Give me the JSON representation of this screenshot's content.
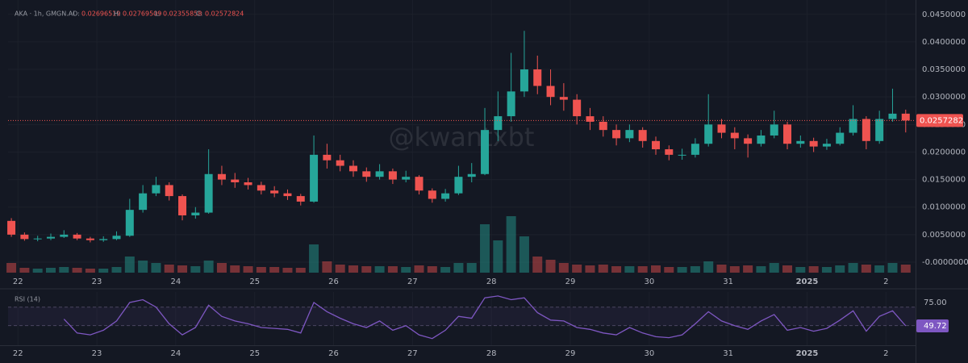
{
  "chart_data": {
    "type": "candlestick",
    "title": "AKA · 1h, GMGN.AI",
    "ohlc_labels": [
      "O:",
      "H:",
      "L:",
      "C:"
    ],
    "watermark": "@kwantxbt",
    "up_color": "#26a69a",
    "down_color": "#ef5350",
    "grid": true,
    "x": [
      -2,
      2,
      6,
      10,
      14,
      18,
      22,
      26,
      30,
      34,
      38,
      42,
      46,
      50,
      54,
      58,
      62,
      66,
      70,
      74,
      78,
      82,
      86,
      90,
      94,
      98,
      102,
      106,
      110,
      114,
      118,
      122,
      126,
      130,
      134,
      138,
      142,
      146,
      150,
      154,
      158,
      162,
      166,
      170,
      174,
      178,
      182,
      186,
      190,
      194,
      198,
      202,
      206,
      210,
      214,
      218,
      222,
      226,
      230,
      234,
      238,
      242,
      246,
      250,
      254,
      258,
      262,
      266,
      270
    ],
    "open": [
      0.0075,
      0.005,
      0.0042,
      0.0043,
      0.0046,
      0.005,
      0.0043,
      0.004,
      0.0042,
      0.0048,
      0.0095,
      0.0125,
      0.014,
      0.012,
      0.0085,
      0.009,
      0.016,
      0.015,
      0.0145,
      0.014,
      0.013,
      0.0125,
      0.012,
      0.011,
      0.0195,
      0.0185,
      0.0175,
      0.0165,
      0.0155,
      0.0165,
      0.015,
      0.0155,
      0.013,
      0.0115,
      0.0125,
      0.0155,
      0.016,
      0.024,
      0.0265,
      0.031,
      0.035,
      0.032,
      0.03,
      0.0295,
      0.0265,
      0.0255,
      0.024,
      0.0225,
      0.024,
      0.022,
      0.0205,
      0.0195,
      0.0195,
      0.0215,
      0.025,
      0.0235,
      0.0225,
      0.0215,
      0.023,
      0.025,
      0.0215,
      0.022,
      0.021,
      0.0215,
      0.0235,
      0.026,
      0.022,
      0.026,
      0.02696519
    ],
    "high": [
      0.008,
      0.0054,
      0.0048,
      0.0052,
      0.0058,
      0.0053,
      0.0046,
      0.0047,
      0.0056,
      0.0115,
      0.014,
      0.0155,
      0.0145,
      0.0123,
      0.01,
      0.0205,
      0.0175,
      0.0162,
      0.0153,
      0.0146,
      0.0138,
      0.0132,
      0.0124,
      0.023,
      0.0215,
      0.0195,
      0.0185,
      0.0172,
      0.0178,
      0.017,
      0.0166,
      0.0158,
      0.0134,
      0.0133,
      0.0175,
      0.018,
      0.028,
      0.031,
      0.038,
      0.042,
      0.0375,
      0.035,
      0.0325,
      0.0305,
      0.028,
      0.0265,
      0.025,
      0.025,
      0.0245,
      0.0228,
      0.0212,
      0.0206,
      0.0225,
      0.0305,
      0.026,
      0.0245,
      0.0232,
      0.024,
      0.0275,
      0.0255,
      0.023,
      0.0226,
      0.0224,
      0.0245,
      0.0285,
      0.0265,
      0.0275,
      0.0315,
      0.02769509
    ],
    "low": [
      0.0046,
      0.0039,
      0.0038,
      0.004,
      0.0044,
      0.004,
      0.0036,
      0.0037,
      0.004,
      0.0046,
      0.009,
      0.012,
      0.0112,
      0.0076,
      0.0079,
      0.0088,
      0.014,
      0.0135,
      0.0132,
      0.0123,
      0.0118,
      0.0113,
      0.0103,
      0.0108,
      0.017,
      0.0165,
      0.0155,
      0.0146,
      0.015,
      0.0142,
      0.0145,
      0.0123,
      0.0108,
      0.011,
      0.0122,
      0.0145,
      0.0158,
      0.022,
      0.0255,
      0.03,
      0.0305,
      0.0285,
      0.0275,
      0.025,
      0.024,
      0.0228,
      0.0212,
      0.0218,
      0.0208,
      0.0195,
      0.0185,
      0.0186,
      0.019,
      0.021,
      0.0225,
      0.0205,
      0.019,
      0.021,
      0.0225,
      0.0205,
      0.0208,
      0.02,
      0.0204,
      0.0212,
      0.023,
      0.0205,
      0.0215,
      0.0255,
      0.02355858
    ],
    "close": [
      0.005,
      0.0042,
      0.0043,
      0.0046,
      0.005,
      0.0043,
      0.004,
      0.0042,
      0.0048,
      0.0095,
      0.0125,
      0.014,
      0.012,
      0.0085,
      0.009,
      0.016,
      0.015,
      0.0145,
      0.014,
      0.013,
      0.0125,
      0.012,
      0.011,
      0.0195,
      0.0185,
      0.0175,
      0.0165,
      0.0155,
      0.0165,
      0.015,
      0.0155,
      0.013,
      0.0115,
      0.0125,
      0.0155,
      0.016,
      0.024,
      0.0265,
      0.031,
      0.035,
      0.032,
      0.03,
      0.0295,
      0.0265,
      0.0255,
      0.024,
      0.0225,
      0.024,
      0.022,
      0.0205,
      0.0195,
      0.0195,
      0.0215,
      0.025,
      0.0235,
      0.0225,
      0.0215,
      0.023,
      0.025,
      0.0215,
      0.022,
      0.021,
      0.0215,
      0.0235,
      0.026,
      0.022,
      0.026,
      0.02696519,
      0.02572824
    ],
    "volume": [
      12,
      6,
      5,
      6,
      7,
      6,
      5,
      5,
      7,
      20,
      15,
      12,
      10,
      9,
      8,
      15,
      12,
      9,
      8,
      7,
      7,
      6,
      6,
      35,
      14,
      10,
      9,
      8,
      8,
      8,
      7,
      9,
      8,
      7,
      12,
      12,
      60,
      40,
      70,
      45,
      20,
      16,
      12,
      10,
      9,
      10,
      8,
      8,
      8,
      9,
      7,
      7,
      8,
      14,
      10,
      8,
      9,
      8,
      12,
      9,
      7,
      8,
      7,
      9,
      12,
      10,
      9,
      12,
      10
    ],
    "xlim": [
      -3,
      273
    ],
    "xticks": [
      {
        "value": 0,
        "label": "22"
      },
      {
        "value": 24,
        "label": "23"
      },
      {
        "value": 48,
        "label": "24"
      },
      {
        "value": 72,
        "label": "25"
      },
      {
        "value": 96,
        "label": "26"
      },
      {
        "value": 120,
        "label": "27"
      },
      {
        "value": 144,
        "label": "28"
      },
      {
        "value": 168,
        "label": "29"
      },
      {
        "value": 192,
        "label": "30"
      },
      {
        "value": 216,
        "label": "31"
      },
      {
        "value": 240,
        "label": "2025"
      },
      {
        "value": 264,
        "label": "2"
      }
    ],
    "ylim": [
      -0.0019,
      0.0476
    ],
    "yticks": [
      {
        "value": 0.045,
        "label": "0.0450000"
      },
      {
        "value": 0.04,
        "label": "0.0400000"
      },
      {
        "value": 0.035,
        "label": "0.0350000"
      },
      {
        "value": 0.03,
        "label": "0.0300000"
      },
      {
        "value": 0.025,
        "label": "0.0250000"
      },
      {
        "value": 0.02,
        "label": "0.0200000"
      },
      {
        "value": 0.015,
        "label": "0.0150000"
      },
      {
        "value": 0.01,
        "label": "0.0100000"
      },
      {
        "value": 0.005,
        "label": "0.0050000"
      },
      {
        "value": 0,
        "label": "-0.0000000"
      }
    ],
    "price_line": 0.0257282,
    "indicator": {
      "name": "RSI (14)",
      "color": "#7e57c2",
      "values": [
        null,
        null,
        null,
        null,
        57,
        42,
        40,
        45,
        55,
        75,
        78,
        70,
        52,
        40,
        48,
        72,
        60,
        55,
        52,
        48,
        47,
        46,
        42,
        75,
        65,
        58,
        52,
        48,
        55,
        45,
        50,
        40,
        36,
        45,
        60,
        58,
        80,
        82,
        78,
        80,
        64,
        56,
        55,
        48,
        46,
        42,
        40,
        48,
        42,
        38,
        37,
        40,
        52,
        65,
        55,
        50,
        46,
        55,
        62,
        45,
        48,
        44,
        47,
        56,
        66,
        44,
        60,
        66,
        49.72
      ],
      "ylim": [
        28.8,
        86.3
      ],
      "yticks": [
        {
          "value": 75,
          "label": "75.00"
        }
      ],
      "bands": [
        70,
        50
      ],
      "last": 49.72
    }
  }
}
